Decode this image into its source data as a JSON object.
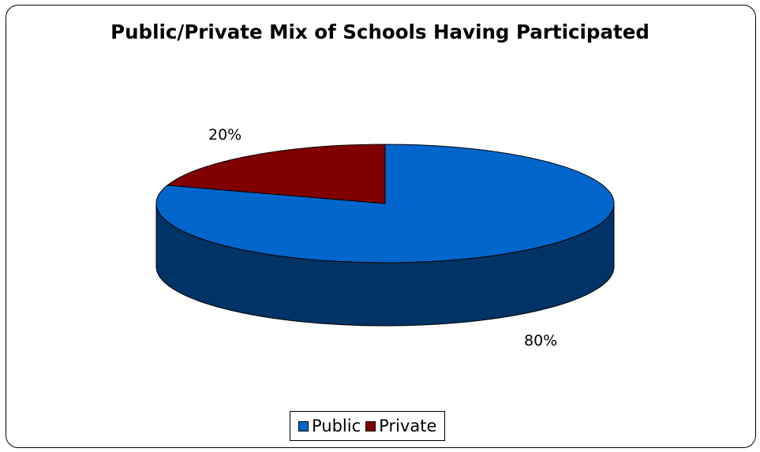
{
  "chart_data": {
    "type": "pie",
    "title": "Public/Private Mix of Schools Having Participated",
    "slices": [
      {
        "name": "Public",
        "value": 80,
        "label": "80%",
        "color": "#0066cc",
        "side_color": "#003366"
      },
      {
        "name": "Private",
        "value": 20,
        "label": "20%",
        "color": "#800000",
        "side_color": "#4d0000"
      }
    ],
    "style": "3d-pie",
    "legend": {
      "position": "bottom",
      "entries": [
        "Public",
        "Private"
      ]
    }
  }
}
